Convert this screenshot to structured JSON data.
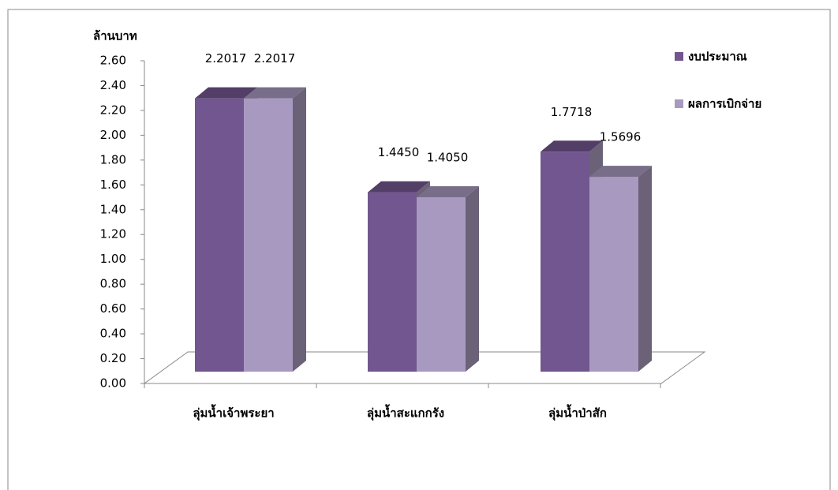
{
  "chart_data": {
    "type": "bar3d",
    "y_axis_label": "ล้านบาท",
    "categories": [
      "ลุ่มน้ำเจ้าพระยา",
      "ลุ่มน้ำสะแกกรัง",
      "ลุ่มน้ำป่าสัก"
    ],
    "series": [
      {
        "name": "งบประมาณ",
        "color": "#72568f",
        "values": [
          2.2017,
          1.445,
          1.7718
        ],
        "value_labels": [
          "2.2017",
          "1.4450",
          "1.7718"
        ]
      },
      {
        "name": "ผลการเบิกจ่าย",
        "color": "#a899c0",
        "values": [
          2.2017,
          1.405,
          1.5696
        ],
        "value_labels": [
          "2.2017",
          "1.4050",
          "1.5696"
        ]
      }
    ],
    "ylim": [
      0,
      2.6
    ],
    "yticks": [
      {
        "value": 0,
        "label": "0.00"
      },
      {
        "value": 0.2,
        "label": "0.20"
      },
      {
        "value": 0.4,
        "label": "0.40"
      },
      {
        "value": 0.6,
        "label": "0.60"
      },
      {
        "value": 0.8,
        "label": "0.80"
      },
      {
        "value": 1,
        "label": "1.00"
      },
      {
        "value": 1.2,
        "label": "1.20"
      },
      {
        "value": 1.4,
        "label": "1.40"
      },
      {
        "value": 1.6,
        "label": "1.60"
      },
      {
        "value": 1.8,
        "label": "1.80"
      },
      {
        "value": 2,
        "label": "2.00"
      },
      {
        "value": 2.2,
        "label": "2.20"
      },
      {
        "value": 2.4,
        "label": "2.40"
      },
      {
        "value": 2.6,
        "label": "2.60"
      }
    ],
    "legend": "right"
  }
}
